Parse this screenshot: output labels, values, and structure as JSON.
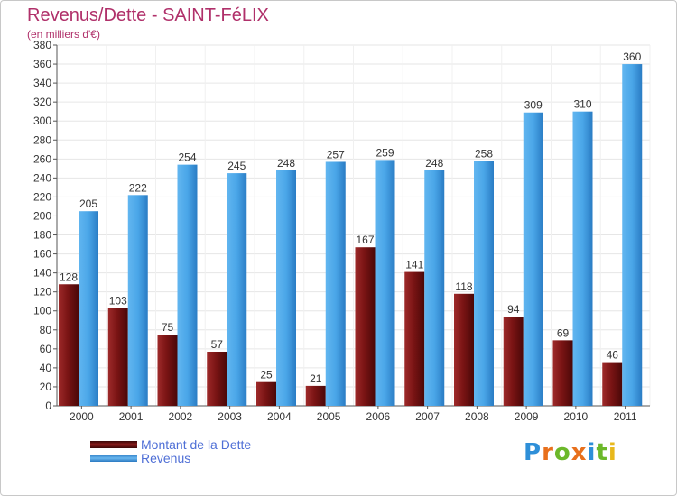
{
  "chart_data": {
    "type": "bar",
    "title": "Revenus/Dette - SAINT-FéLIX",
    "subtitle": "(en milliers d'€)",
    "categories": [
      "2000",
      "2001",
      "2002",
      "2003",
      "2004",
      "2005",
      "2006",
      "2007",
      "2008",
      "2009",
      "2010",
      "2011"
    ],
    "series": [
      {
        "name": "Montant de la Dette",
        "color": "#8b1c1c",
        "values": [
          128,
          103,
          75,
          57,
          25,
          21,
          167,
          141,
          118,
          94,
          69,
          46
        ]
      },
      {
        "name": "Revenus",
        "color": "#4aa6e8",
        "values": [
          205,
          222,
          254,
          245,
          248,
          257,
          259,
          248,
          258,
          309,
          310,
          360
        ]
      }
    ],
    "ylim": [
      0,
      380
    ],
    "yticks": [
      "0",
      "20",
      "40",
      "60",
      "80",
      "100",
      "120",
      "140",
      "160",
      "180",
      "200",
      "220",
      "240",
      "260",
      "280",
      "300",
      "320",
      "340",
      "360",
      "380"
    ],
    "grid": true,
    "legend_position": "bottom-left"
  },
  "logo": {
    "letters": [
      "P",
      "r",
      "o",
      "x",
      "i",
      "t",
      "i"
    ],
    "colors": [
      "#2e8fd8",
      "#e8701c",
      "#6cb82a",
      "#e8701c",
      "#2e8fd8",
      "#6cb82a",
      "#e8b81c"
    ]
  }
}
